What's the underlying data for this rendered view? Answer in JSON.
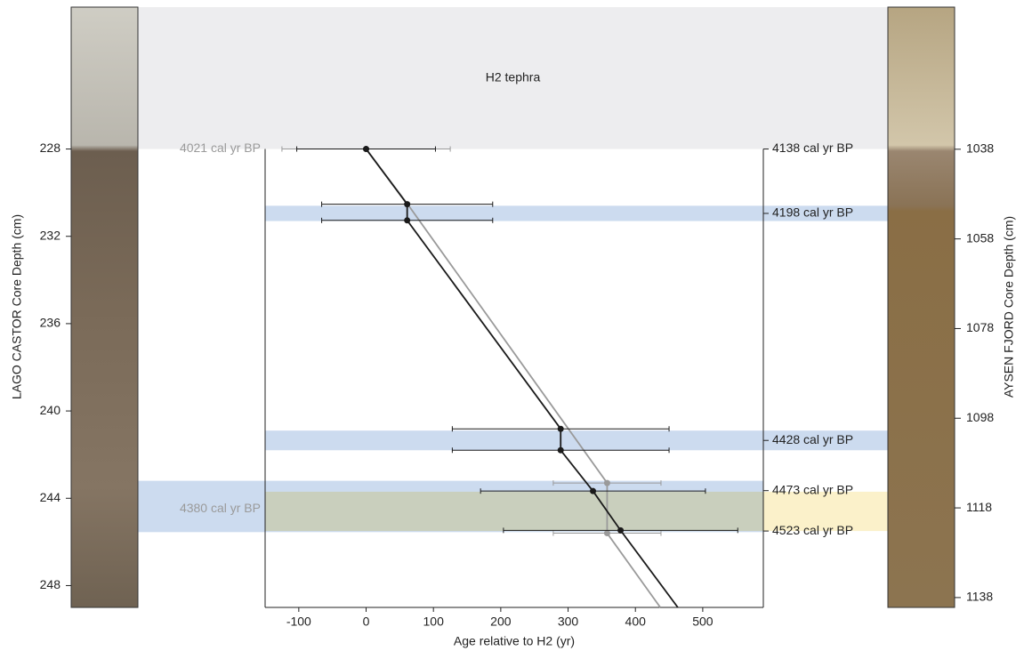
{
  "chart_data": {
    "type": "line",
    "xlabel": "Age relative to H2 (yr)",
    "ylabel": "LAGO CASTOR Core Depth (cm)",
    "y2label": "AYSEN FJORD Core Depth (cm)",
    "xlim": [
      -150,
      590
    ],
    "xticks": [
      -100,
      0,
      100,
      200,
      300,
      400,
      500
    ],
    "ylim": [
      221.5,
      249
    ],
    "yticks": [
      228,
      232,
      236,
      240,
      244,
      248
    ],
    "y_inverted": true,
    "y2lim": [
      1006.3,
      1140.2
    ],
    "y2ticks": [
      1038,
      1058,
      1078,
      1098,
      1118,
      1138
    ],
    "bands": [
      {
        "label": "H2 tephra",
        "range": [
          221.5,
          228
        ],
        "extent": "full",
        "color": "#ececee"
      },
      {
        "range": [
          230.6,
          231.3
        ],
        "extent": "right",
        "color": "#c9d9ee"
      },
      {
        "range": [
          240.9,
          241.8
        ],
        "extent": "right",
        "color": "#c9d9ee"
      },
      {
        "range": [
          243.2,
          245.55
        ],
        "extent": "left",
        "color": "#c9d9ee"
      },
      {
        "range": [
          243.7,
          245.5
        ],
        "extent": "right",
        "color": "#fbefc4"
      }
    ],
    "series": [
      {
        "color": "#9a9a9a",
        "x": [
          0,
          61,
          358,
          358,
          437
        ],
        "values": [
          228,
          230.5,
          243.3,
          245.6,
          249
        ],
        "errors": [
          125,
          null,
          80,
          80,
          null
        ]
      },
      {
        "color": "#1a1a1a",
        "x": [
          0,
          61,
          61,
          289,
          289,
          337,
          378,
          463
        ],
        "values": [
          228,
          230.53,
          231.27,
          240.82,
          241.8,
          243.67,
          245.47,
          249
        ],
        "errors": [
          103,
          127,
          127,
          161,
          161,
          167,
          174,
          null
        ]
      }
    ],
    "annotations": [
      {
        "text": "4021 cal yr BP",
        "depth": 228,
        "side": "left",
        "color": "#9a9a9a"
      },
      {
        "text": "4380 cal yr BP",
        "depth": 244.5,
        "side": "left",
        "color": "#9a9a9a"
      },
      {
        "text": "4138 cal yr BP",
        "depth": 228,
        "side": "right",
        "color": "#222"
      },
      {
        "text": "4198 cal yr BP",
        "depth": 230.95,
        "side": "right",
        "color": "#222"
      },
      {
        "text": "4428 cal yr BP",
        "depth": 241.35,
        "side": "right",
        "color": "#222"
      },
      {
        "text": "4473 cal yr BP",
        "depth": 243.65,
        "side": "right",
        "color": "#222"
      },
      {
        "text": "4523 cal yr BP",
        "depth": 245.5,
        "side": "right",
        "color": "#222"
      }
    ]
  }
}
